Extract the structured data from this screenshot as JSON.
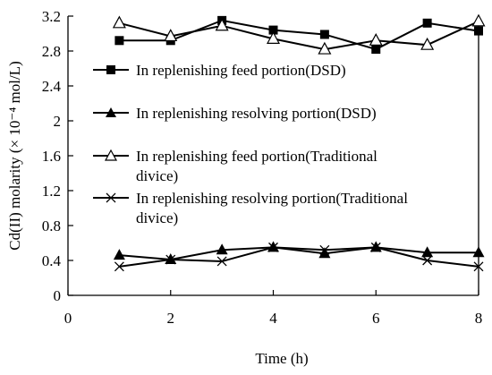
{
  "chart_data": {
    "type": "line",
    "xlabel": "Time (h)",
    "ylabel": "Cd(II) molarity (× 10⁻⁴ mol/L)",
    "xlim": [
      0,
      8
    ],
    "ylim": [
      0,
      3.2
    ],
    "x_ticks": [
      "0",
      "2",
      "4",
      "6",
      "8"
    ],
    "y_ticks": [
      "0",
      "0.4",
      "0.8",
      "1.2",
      "1.6",
      "2",
      "2.4",
      "2.8",
      "3.2"
    ],
    "grid": false,
    "legend_position": "center",
    "x": [
      1,
      2,
      3,
      4,
      5,
      6,
      7,
      8
    ],
    "series": [
      {
        "name": "In replenishing feed portion(DSD)",
        "marker": "filled-square",
        "values": [
          2.92,
          2.92,
          3.15,
          3.04,
          2.99,
          2.82,
          3.12,
          3.03
        ]
      },
      {
        "name": "In replenishing resolving portion(DSD)",
        "marker": "filled-triangle",
        "values": [
          0.46,
          0.41,
          0.52,
          0.55,
          0.48,
          0.55,
          0.49,
          0.49
        ]
      },
      {
        "name": "In replenishing feed portion(Traditional divice)",
        "marker": "open-triangle",
        "values": [
          3.12,
          2.97,
          3.09,
          2.94,
          2.82,
          2.92,
          2.87,
          3.14
        ]
      },
      {
        "name": "In replenishing resolving portion(Traditional divice)",
        "marker": "x",
        "values": [
          0.33,
          0.41,
          0.39,
          0.55,
          0.52,
          0.55,
          0.4,
          0.33
        ]
      }
    ]
  }
}
